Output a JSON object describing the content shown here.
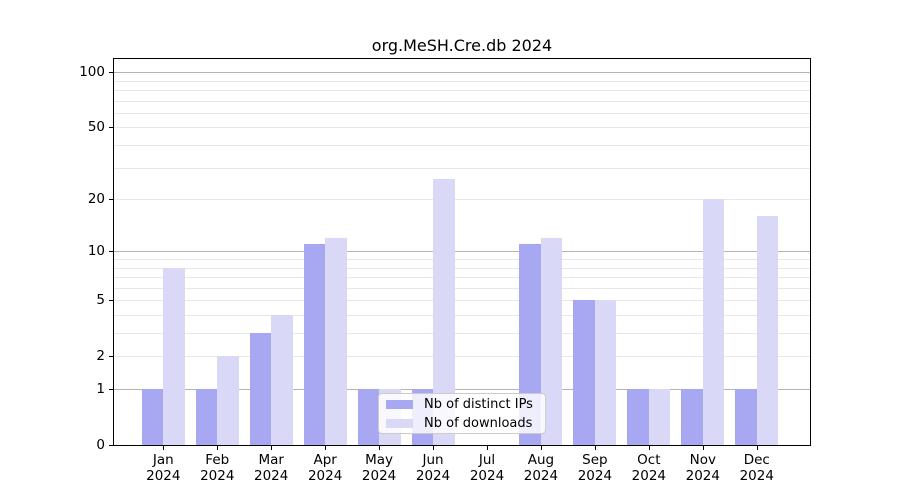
{
  "chart_data": {
    "type": "bar",
    "title": "org.MeSH.Cre.db 2024",
    "categories": [
      "Jan",
      "Feb",
      "Mar",
      "Apr",
      "May",
      "Jun",
      "Jul",
      "Aug",
      "Sep",
      "Oct",
      "Nov",
      "Dec"
    ],
    "year_label": "2024",
    "series": [
      {
        "name": "Nb of distinct IPs",
        "color": "#a8a8f2",
        "values": [
          1,
          1,
          3,
          11,
          1,
          1,
          0,
          11,
          5,
          1,
          1,
          1
        ]
      },
      {
        "name": "Nb of downloads",
        "color": "#d9d9f7",
        "values": [
          8,
          2,
          4,
          12,
          1,
          26,
          0,
          12,
          5,
          1,
          20,
          16
        ]
      }
    ],
    "y_scale": "log1p",
    "y_ticks": [
      100,
      50,
      20,
      10,
      5,
      2,
      1,
      0
    ],
    "y_minor_gridlines": [
      2,
      3,
      4,
      5,
      6,
      7,
      8,
      9,
      20,
      30,
      40,
      50,
      60,
      70,
      80,
      90
    ],
    "y_major_gridlines": [
      1,
      10,
      100
    ],
    "ylim": [
      0,
      118
    ],
    "grid": "horizontal",
    "legend_position": "lower center"
  },
  "colors": {
    "major_grid": "#b3b3b3",
    "minor_grid": "#e8e8e8",
    "axis": "#000000",
    "background": "#ffffff"
  }
}
